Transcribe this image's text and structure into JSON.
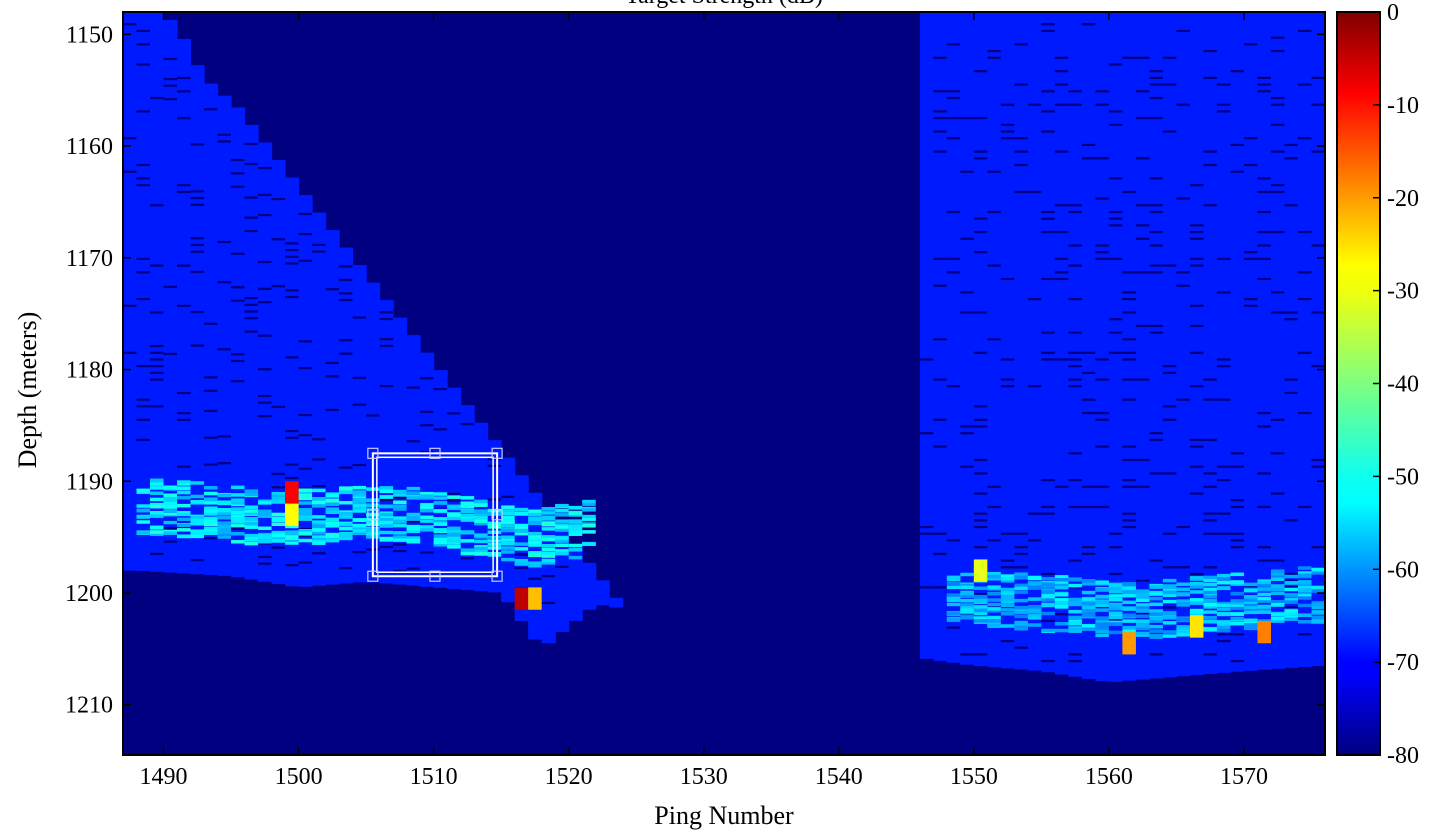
{
  "chart_data": {
    "type": "heatmap",
    "title": "Target Strength (dB)",
    "xlabel": "Ping Number",
    "ylabel": "Depth (meters)",
    "xlim": [
      1487,
      1576
    ],
    "ylim": [
      1214.5,
      1148
    ],
    "x_ticks": [
      1490,
      1500,
      1510,
      1520,
      1530,
      1540,
      1550,
      1560,
      1570
    ],
    "y_ticks": [
      1150,
      1160,
      1170,
      1180,
      1190,
      1200,
      1210
    ],
    "colorbar": {
      "min": -80,
      "max": 0,
      "ticks": [
        0,
        -10,
        -20,
        -30,
        -40,
        -50,
        -60,
        -70,
        -80
      ],
      "colormap": "jet"
    },
    "background_level_db": -68,
    "no_data_level_db": -80,
    "water_column_segments": [
      {
        "ping_start": 1487,
        "ping_end": 1525,
        "top_depth": [
          1148,
          1148,
          1148,
          1150,
          1153,
          1155,
          1156,
          1158,
          1160,
          1162,
          1164,
          1166,
          1168,
          1170,
          1172,
          1174,
          1176,
          1178,
          1180,
          1182,
          1184,
          1186,
          1188,
          1190,
          1192,
          1194,
          1196,
          1198,
          1200,
          1202
        ]
      },
      {
        "ping_start": 1546,
        "ping_end": 1576,
        "top_depth": 1148
      }
    ],
    "bottom_depth_profile": {
      "ping": [
        1488,
        1495,
        1500,
        1505,
        1510,
        1515,
        1518,
        1522,
        1547,
        1550,
        1555,
        1560,
        1565,
        1570,
        1576
      ],
      "depth": [
        1198,
        1198.5,
        1199.5,
        1199,
        1199.5,
        1200,
        1205,
        1201,
        1206,
        1206.5,
        1207,
        1208,
        1207.5,
        1207,
        1206.5
      ]
    },
    "scattering_layers": [
      {
        "ping_start": 1488,
        "ping_end": 1522,
        "center_depth": [
          1192,
          1192.5,
          1193,
          1193,
          1192.5,
          1193,
          1194,
          1195,
          1194
        ],
        "thickness": 5,
        "level_db": -52
      },
      {
        "ping_start": 1548,
        "ping_end": 1576,
        "center_depth": [
          1200,
          1200.5,
          1201,
          1201.5,
          1201,
          1200.5,
          1200
        ],
        "thickness": 5,
        "level_db": -55
      }
    ],
    "hotspots": [
      {
        "ping": 1499,
        "depth": 1193,
        "level_db": -30
      },
      {
        "ping": 1499,
        "depth": 1191,
        "level_db": -10
      },
      {
        "ping": 1516,
        "depth": 1200.5,
        "level_db": -5
      },
      {
        "ping": 1517,
        "depth": 1200.5,
        "level_db": -25
      },
      {
        "ping": 1550,
        "depth": 1198,
        "level_db": -32
      },
      {
        "ping": 1561,
        "depth": 1204.5,
        "level_db": -22
      },
      {
        "ping": 1566,
        "depth": 1203,
        "level_db": -28
      },
      {
        "ping": 1571,
        "depth": 1203.5,
        "level_db": -20
      }
    ],
    "selection_box": {
      "ping_start": 1505.5,
      "ping_end": 1514.7,
      "depth_top": 1187.5,
      "depth_bottom": 1198.5
    }
  }
}
